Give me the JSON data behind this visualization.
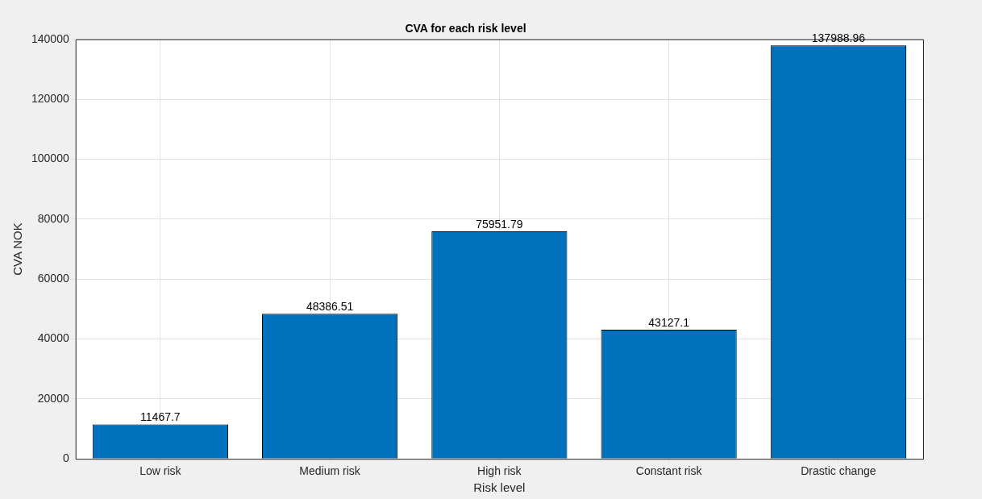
{
  "chart_data": {
    "type": "bar",
    "title": "CVA for each risk level",
    "xlabel": "Risk level",
    "ylabel": "CVA NOK",
    "categories": [
      "Low risk",
      "Medium risk",
      "High risk",
      "Constant risk",
      "Drastic change"
    ],
    "values": [
      11467.7,
      48386.51,
      75951.79,
      43127.1,
      137988.96
    ],
    "color": "#0072bd",
    "ylim": [
      0,
      140000
    ],
    "yticks": [
      0,
      20000,
      40000,
      60000,
      80000,
      100000,
      120000,
      140000
    ],
    "grid": true,
    "data_labels": true
  }
}
